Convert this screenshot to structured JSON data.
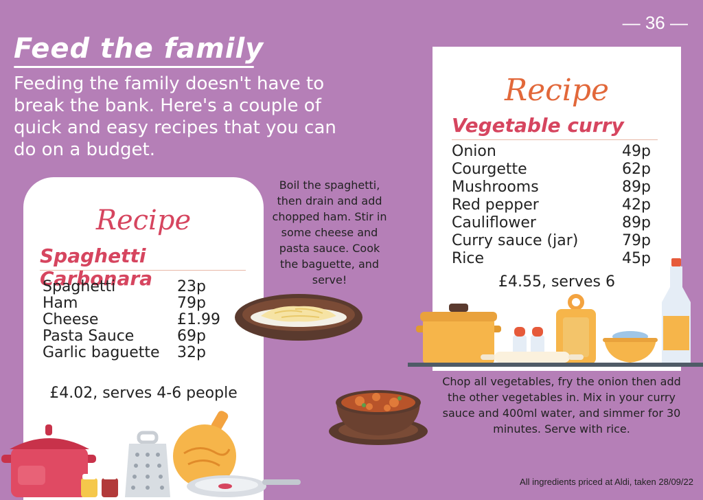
{
  "page": {
    "number": "— 36 —"
  },
  "header": {
    "title": "Feed the family",
    "intro": "Feeding the family doesn't have to break the bank. Here's a couple of quick and easy recipes that you can do on a budget."
  },
  "recipe_left": {
    "label": "Recipe",
    "name": "Spaghetti Carbonara",
    "ingredients": [
      {
        "name": "Spaghetti",
        "price": "23p"
      },
      {
        "name": "Ham",
        "price": "79p"
      },
      {
        "name": "Cheese",
        "price": "£1.99"
      },
      {
        "name": "Pasta Sauce",
        "price": "69p"
      },
      {
        "name": "Garlic baguette",
        "price": "32p"
      }
    ],
    "total": "£4.02, serves 4-6 people",
    "instructions": "Boil the spaghetti, then drain and add chopped ham. Stir in some cheese and pasta sauce. Cook the baguette, and serve!"
  },
  "recipe_right": {
    "label": "Recipe",
    "name": "Vegetable curry",
    "ingredients": [
      {
        "name": "Onion",
        "price": "49p"
      },
      {
        "name": "Courgette",
        "price": "62p"
      },
      {
        "name": "Mushrooms",
        "price": "89p"
      },
      {
        "name": "Red pepper",
        "price": "42p"
      },
      {
        "name": "Cauliflower",
        "price": "89p"
      },
      {
        "name": "Curry sauce (jar)",
        "price": "79p"
      },
      {
        "name": "Rice",
        "price": "45p"
      }
    ],
    "total": "£4.55, serves 6",
    "instructions": "Chop all vegetables, fry the onion then add the other vegetables in. Mix in your curry sauce and 400ml water, and simmer for 30 minutes. Serve with rice."
  },
  "footer": {
    "note": "All ingredients priced at Aldi, taken 28/09/22"
  },
  "colors": {
    "background": "#b57fb7",
    "accent_red": "#d6455f",
    "accent_orange": "#e2683a"
  },
  "illustrations": [
    "pasta-bowl-icon",
    "curry-bowl-icon",
    "cooking-pot-icon",
    "grater-icon",
    "cutting-board-icon",
    "pan-icon",
    "salt-pepper-icon",
    "bottle-icon",
    "mixing-bowl-icon",
    "rolling-pin-icon"
  ]
}
